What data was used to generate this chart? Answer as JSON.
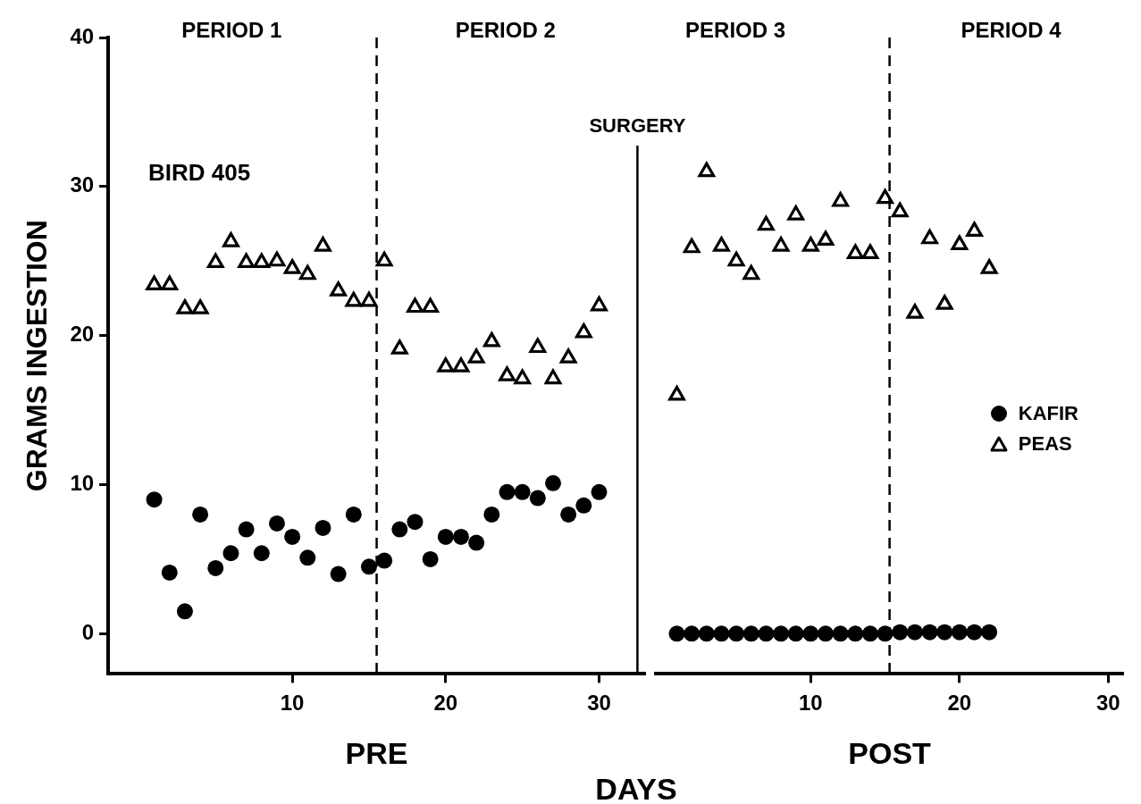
{
  "chart_data": [
    {
      "type": "scatter",
      "xlabel": "PRE",
      "ylabel": "GRAMS INGESTION",
      "xlim": [
        -2,
        33
      ],
      "xticks": [
        10,
        20,
        30
      ],
      "ylim": [
        -2.7,
        40
      ],
      "yticks": [
        0,
        10,
        20,
        30,
        40
      ],
      "legend": false,
      "x": [
        1,
        2,
        3,
        4,
        5,
        6,
        7,
        8,
        9,
        10,
        11,
        12,
        13,
        14,
        15,
        16,
        17,
        18,
        19,
        20,
        21,
        22,
        23,
        24,
        25,
        26,
        27,
        28,
        29,
        30
      ],
      "series": [
        {
          "color": "#000000",
          "marker": "circle",
          "values": [
            9.0,
            4.1,
            1.5,
            8.0,
            4.4,
            5.4,
            7.0,
            5.4,
            7.4,
            6.5,
            5.1,
            7.1,
            4.0,
            8.0,
            4.5,
            4.9,
            7.0,
            7.5,
            5.0,
            6.5,
            6.5,
            6.1,
            8.0,
            9.5,
            9.5,
            9.1,
            10.1,
            8.0,
            8.6,
            9.5
          ]
        },
        {
          "color": "#000000",
          "marker": "triangle",
          "values": [
            23.4,
            23.4,
            21.8,
            21.8,
            24.9,
            26.3,
            24.9,
            24.9,
            25.0,
            24.5,
            24.1,
            26.0,
            23.0,
            22.3,
            22.3,
            25.0,
            19.1,
            21.9,
            21.9,
            17.9,
            17.9,
            18.5,
            19.6,
            17.3,
            17.1,
            19.2,
            17.1,
            18.5,
            20.2,
            22.0
          ]
        }
      ],
      "ref_lines": [
        {
          "axis": "x",
          "value": 15.5,
          "line_style": "dashed"
        },
        {
          "axis": "x",
          "value": 32.5,
          "label": "SURGERY",
          "line_style": "solid"
        }
      ],
      "annotations": [
        "PERIOD 1",
        "PERIOD 2",
        "BIRD 405",
        "DAYS"
      ]
    },
    {
      "type": "scatter",
      "xlabel": "POST",
      "xlim": [
        -0.4,
        31
      ],
      "xticks": [
        10,
        20,
        30
      ],
      "ylim": [
        -2.7,
        40
      ],
      "tick_labels": "x",
      "legend": "right",
      "x": [
        1,
        2,
        3,
        4,
        5,
        6,
        7,
        8,
        9,
        10,
        11,
        12,
        13,
        14,
        15,
        16,
        17,
        18,
        19,
        20,
        21,
        22
      ],
      "series": [
        {
          "name": "KAFIR",
          "color": "#000000",
          "marker": "circle",
          "values": [
            0,
            0,
            0,
            0,
            0,
            0,
            0,
            0,
            0,
            0,
            0,
            0,
            0,
            0,
            0,
            0.1,
            0.1,
            0.1,
            0.1,
            0.1,
            0.1,
            0.1
          ]
        },
        {
          "name": "PEAS",
          "color": "#000000",
          "marker": "triangle",
          "values": [
            16.0,
            25.9,
            31.0,
            26.0,
            25.0,
            24.1,
            27.4,
            26.0,
            28.1,
            26.0,
            26.4,
            29.0,
            25.5,
            25.5,
            29.2,
            28.3,
            21.5,
            26.5,
            22.1,
            26.1,
            27.0,
            24.5
          ]
        }
      ],
      "ref_lines": [
        {
          "axis": "x",
          "value": 15.3,
          "line_style": "dashed"
        }
      ],
      "annotations": [
        "PERIOD 3",
        "PERIOD 4"
      ]
    }
  ]
}
